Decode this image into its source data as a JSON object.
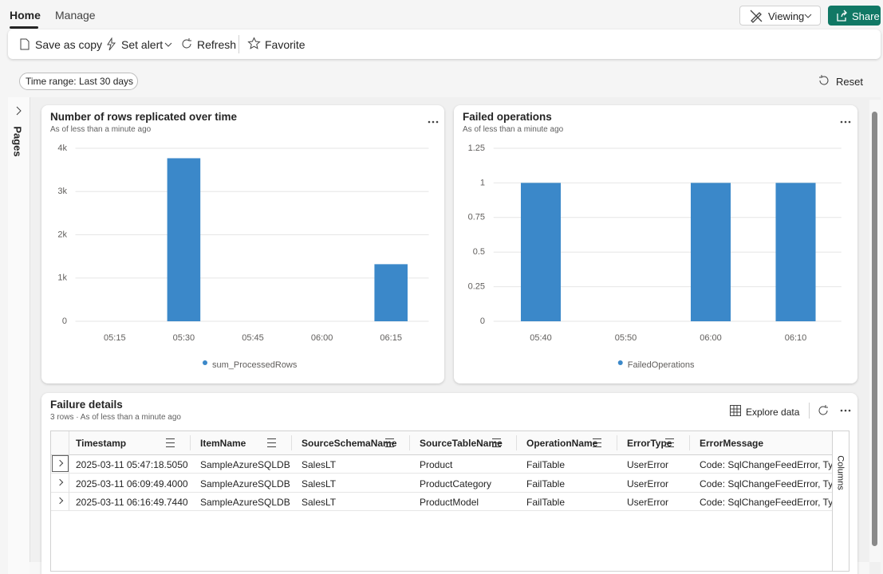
{
  "tabs": [
    "Home",
    "Manage"
  ],
  "header_buttons": {
    "viewing": "Viewing",
    "share": "Share"
  },
  "toolbar": [
    "Save as copy",
    "Set alert",
    "Refresh",
    "Favorite"
  ],
  "filter": {
    "label": "Time range:",
    "value": "Last 30 days"
  },
  "reset": "Reset",
  "pages_label": "Pages",
  "chart_data": [
    {
      "type": "bar",
      "title": "Number of rows replicated over time",
      "subtitle": "As of less than a minute ago",
      "categories": [
        "05:15",
        "05:30",
        "05:45",
        "06:00",
        "06:15"
      ],
      "series": [
        {
          "name": "sum_ProcessedRows",
          "color": "#3b88c9",
          "values": [
            null,
            3770,
            null,
            null,
            1320
          ]
        }
      ],
      "ylim": [
        0,
        4000
      ],
      "yticks": [
        0,
        {
          "value": 1000,
          "label": "1k"
        },
        {
          "value": 2000,
          "label": "2k"
        },
        {
          "value": 3000,
          "label": "3k"
        },
        {
          "value": 4000,
          "label": "4k"
        }
      ],
      "grid": true,
      "legend": "bottom"
    },
    {
      "type": "bar",
      "title": "Failed operations",
      "subtitle": "As of less than a minute ago",
      "categories": [
        "05:40",
        "05:50",
        "06:00",
        "06:10"
      ],
      "series": [
        {
          "name": "FailedOperations",
          "color": "#3b88c9",
          "values": [
            1,
            null,
            1,
            1
          ]
        }
      ],
      "ylim": [
        0,
        1.25
      ],
      "yticks": [
        0,
        0.25,
        0.5,
        0.75,
        1,
        1.25
      ],
      "grid": true,
      "legend": "bottom"
    }
  ],
  "table": {
    "title": "Failure details",
    "subtitle": "3 rows · As of less than a minute ago",
    "explore": "Explore data",
    "columns_panel": "Columns",
    "columns": [
      "Timestamp",
      "ItemName",
      "SourceSchemaName",
      "SourceTableName",
      "OperationName",
      "ErrorType",
      "ErrorMessage"
    ],
    "rows": [
      [
        "2025-03-11 05:47:18.5050",
        "SampleAzureSQLDB",
        "SalesLT",
        "Product",
        "FailTable",
        "UserError",
        "Code: SqlChangeFeedError, Type:"
      ],
      [
        "2025-03-11 06:09:49.4000",
        "SampleAzureSQLDB",
        "SalesLT",
        "ProductCategory",
        "FailTable",
        "UserError",
        "Code: SqlChangeFeedError, Type:"
      ],
      [
        "2025-03-11 06:16:49.7440",
        "SampleAzureSQLDB",
        "SalesLT",
        "ProductModel",
        "FailTable",
        "UserError",
        "Code: SqlChangeFeedError, Type:"
      ]
    ]
  }
}
